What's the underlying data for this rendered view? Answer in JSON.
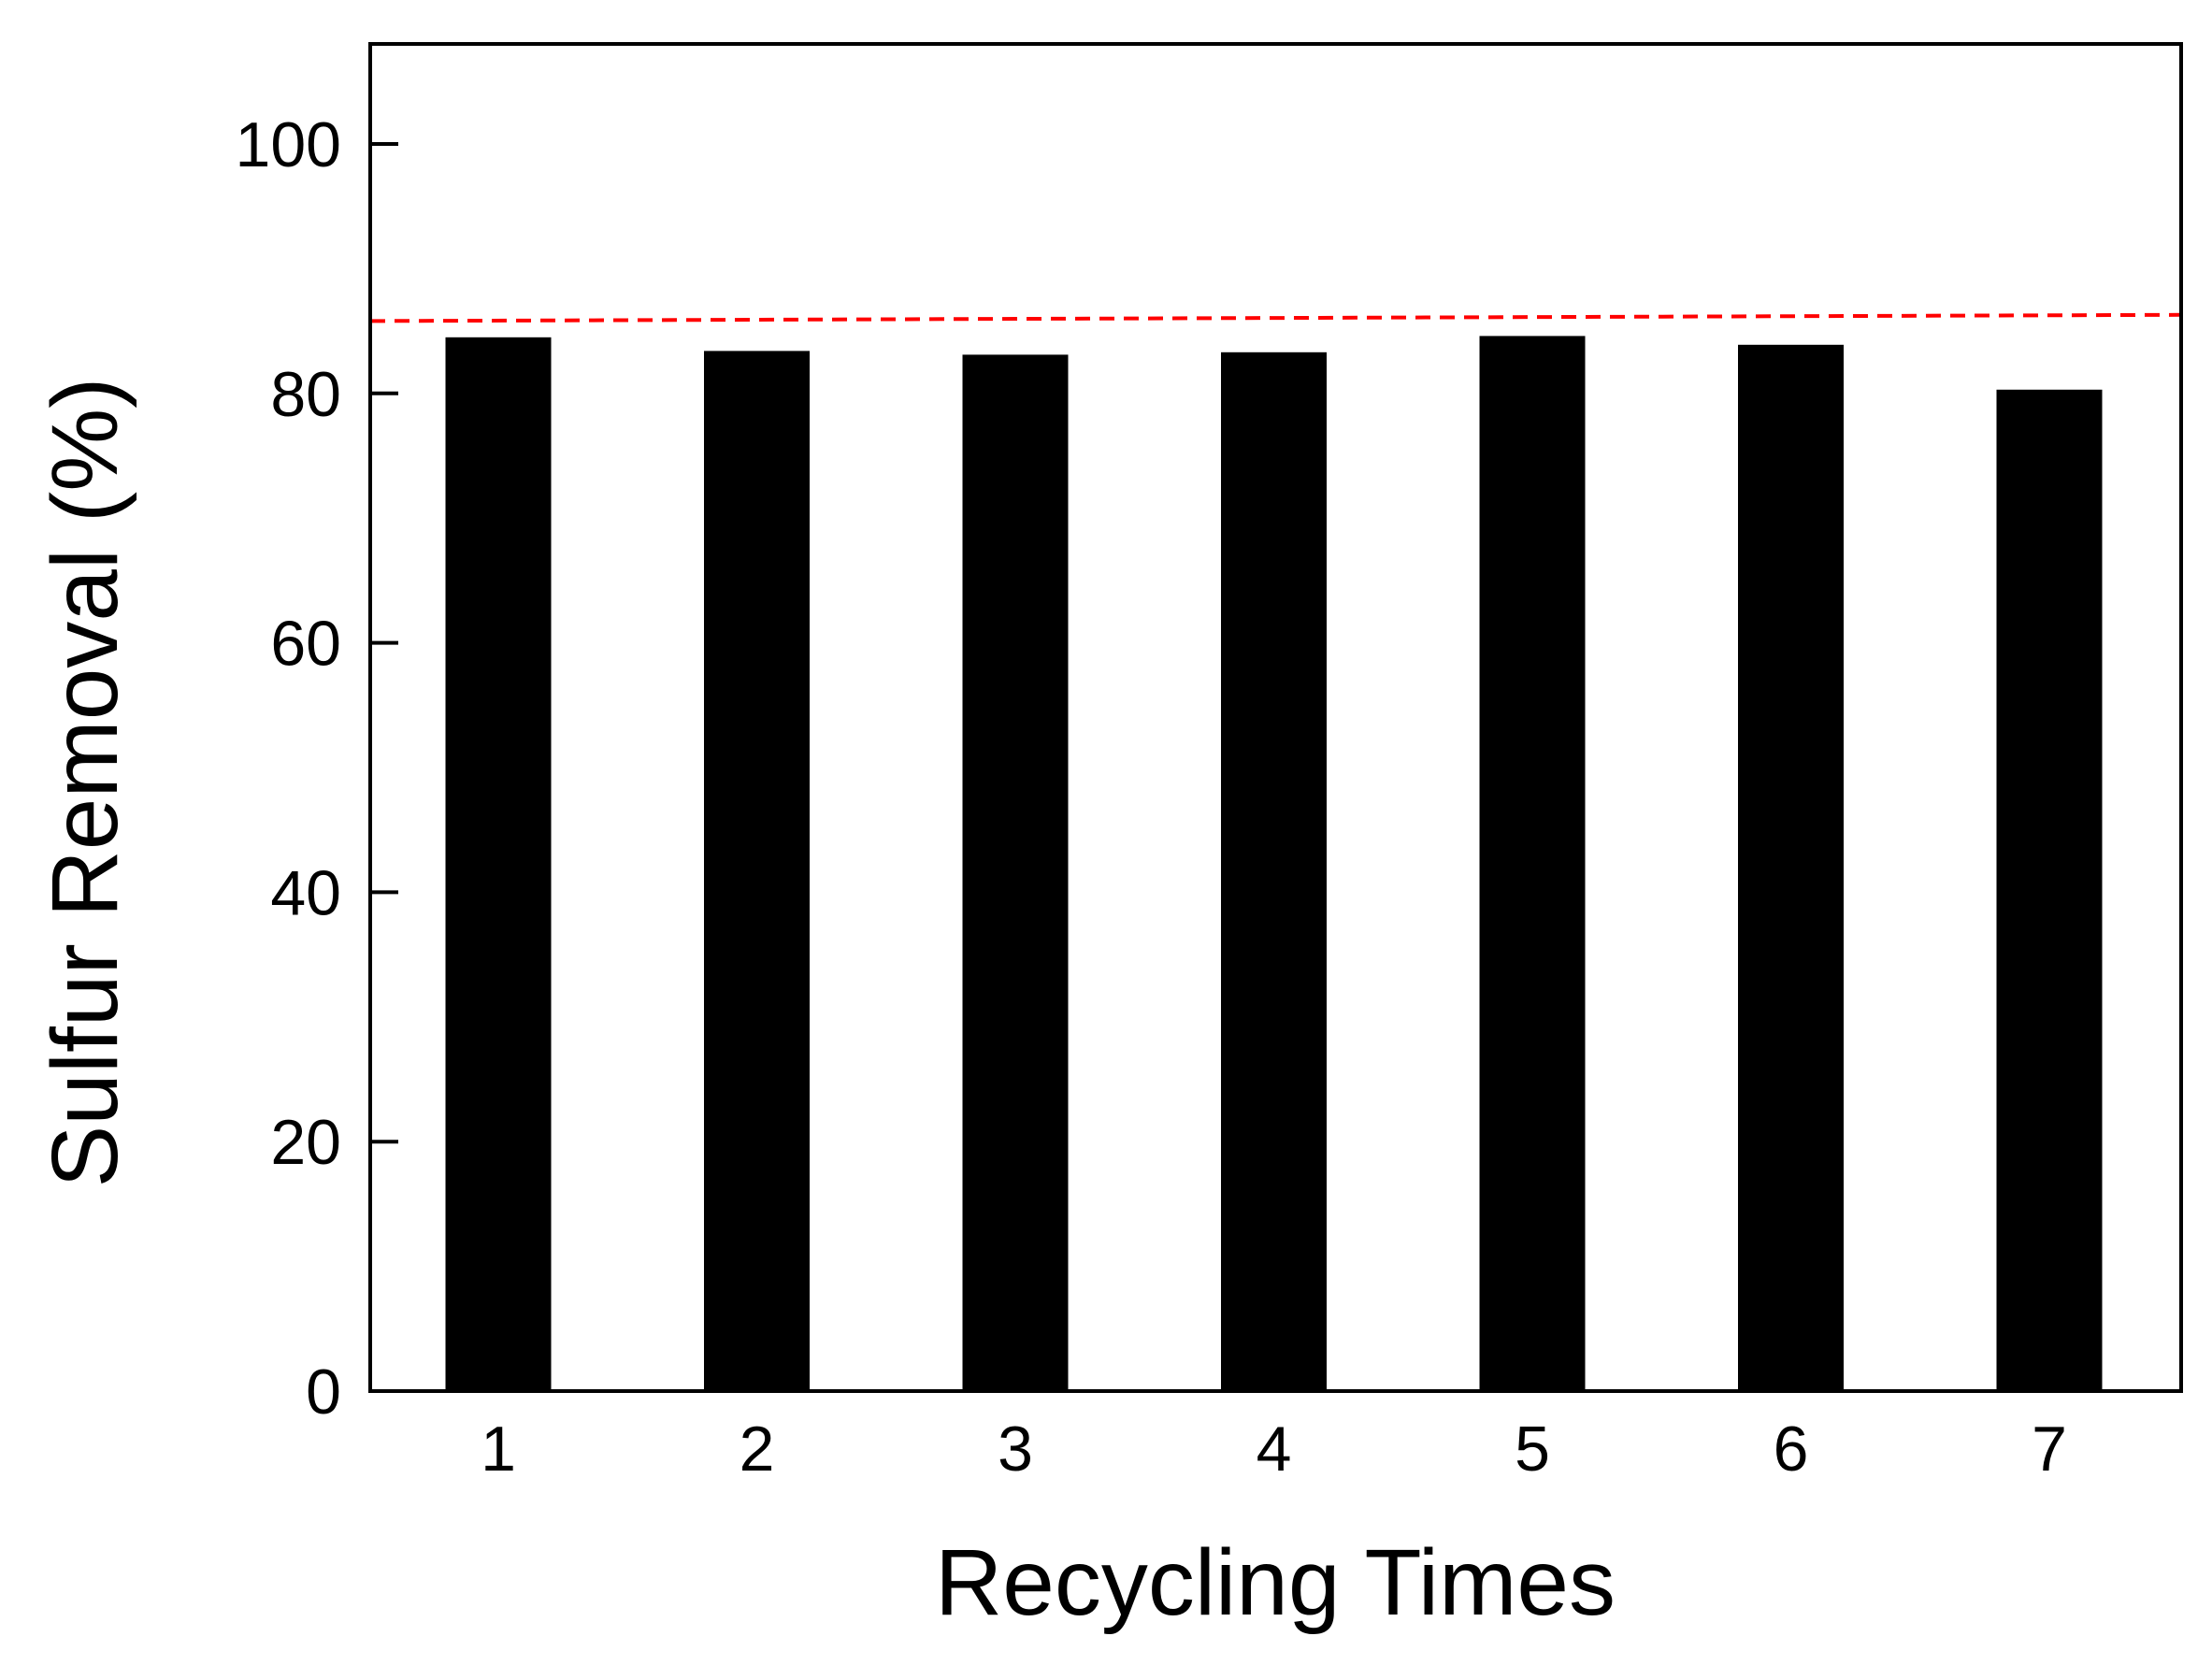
{
  "chart_data": {
    "type": "bar",
    "xlabel": "Recycling Times",
    "ylabel": "Sulfur Removal (%)",
    "categories": [
      "1",
      "2",
      "3",
      "4",
      "5",
      "6",
      "7"
    ],
    "values": [
      84.5,
      83.4,
      83.1,
      83.3,
      84.6,
      83.9,
      80.3
    ],
    "ylim": [
      0,
      108
    ],
    "yticks": [
      0,
      20,
      40,
      60,
      80,
      100
    ],
    "y_tick_labels": [
      "0",
      "20",
      "40",
      "60",
      "80",
      "100"
    ],
    "bar_color": "#000000",
    "reference_line": {
      "style": "dashed",
      "color": "#ff0000",
      "y_start": 85.8,
      "y_end": 86.3
    },
    "grid": false,
    "legend": "none"
  }
}
